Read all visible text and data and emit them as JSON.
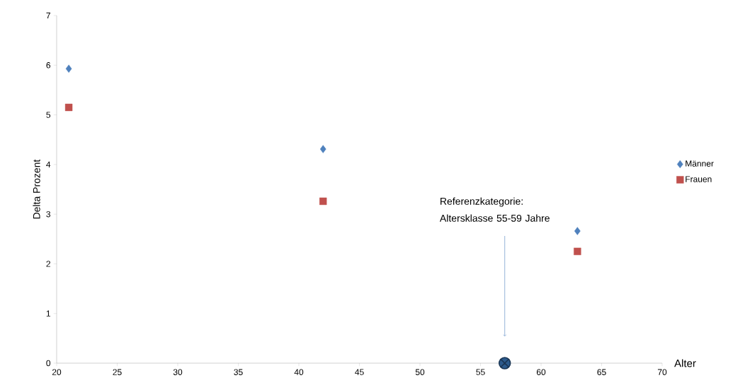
{
  "chart_data": {
    "type": "scatter",
    "xlabel": "Alter",
    "ylabel": "Delta Prozent",
    "xlim": [
      20,
      70
    ],
    "xticks": [
      20,
      25,
      30,
      35,
      40,
      45,
      50,
      55,
      60,
      65,
      70
    ],
    "ylim": [
      0,
      7
    ],
    "yticks": [
      0,
      1,
      2,
      3,
      4,
      5,
      6,
      7
    ],
    "series": [
      {
        "name": "Männer",
        "color": "#4f81bd",
        "marker": "diamond",
        "x": [
          21,
          42,
          63
        ],
        "values": [
          5.93,
          4.31,
          2.66
        ]
      },
      {
        "name": "Frauen",
        "color": "#c0504d",
        "marker": "square",
        "x": [
          21,
          42,
          63
        ],
        "values": [
          5.15,
          3.26,
          2.25
        ]
      },
      {
        "color": "#2c5a8c",
        "marker": "cross",
        "x": [
          57
        ],
        "values": [
          0
        ]
      }
    ],
    "legend": "right",
    "grid": false,
    "annotations": [
      "Referenzkategorie: Altersklasse 55-59 Jahre"
    ]
  }
}
